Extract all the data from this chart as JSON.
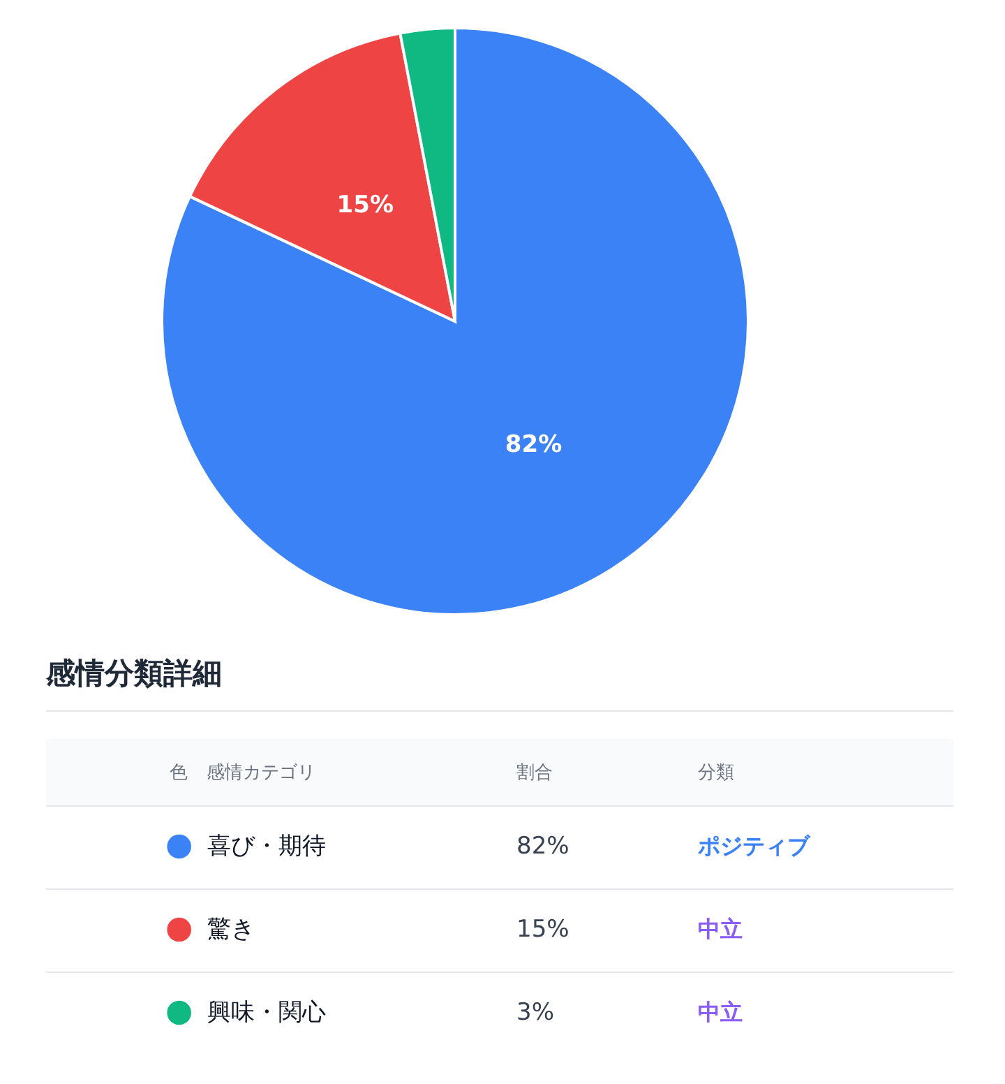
{
  "chart_data": {
    "type": "pie",
    "categories": [
      "喜び・期待",
      "驚き",
      "興味・関心"
    ],
    "values": [
      82,
      15,
      3
    ],
    "colors": [
      "#3b82f6",
      "#ef4444",
      "#10b981"
    ],
    "value_labels": [
      "82%",
      "15%",
      null
    ],
    "legend": "bottom",
    "legend_title": "感情分類詳細",
    "annotations": [
      "色",
      "感情カテゴリ",
      "割合",
      "分類",
      "82%",
      "ポジティブ",
      "15%",
      "中立",
      "3%",
      "中立"
    ]
  }
}
